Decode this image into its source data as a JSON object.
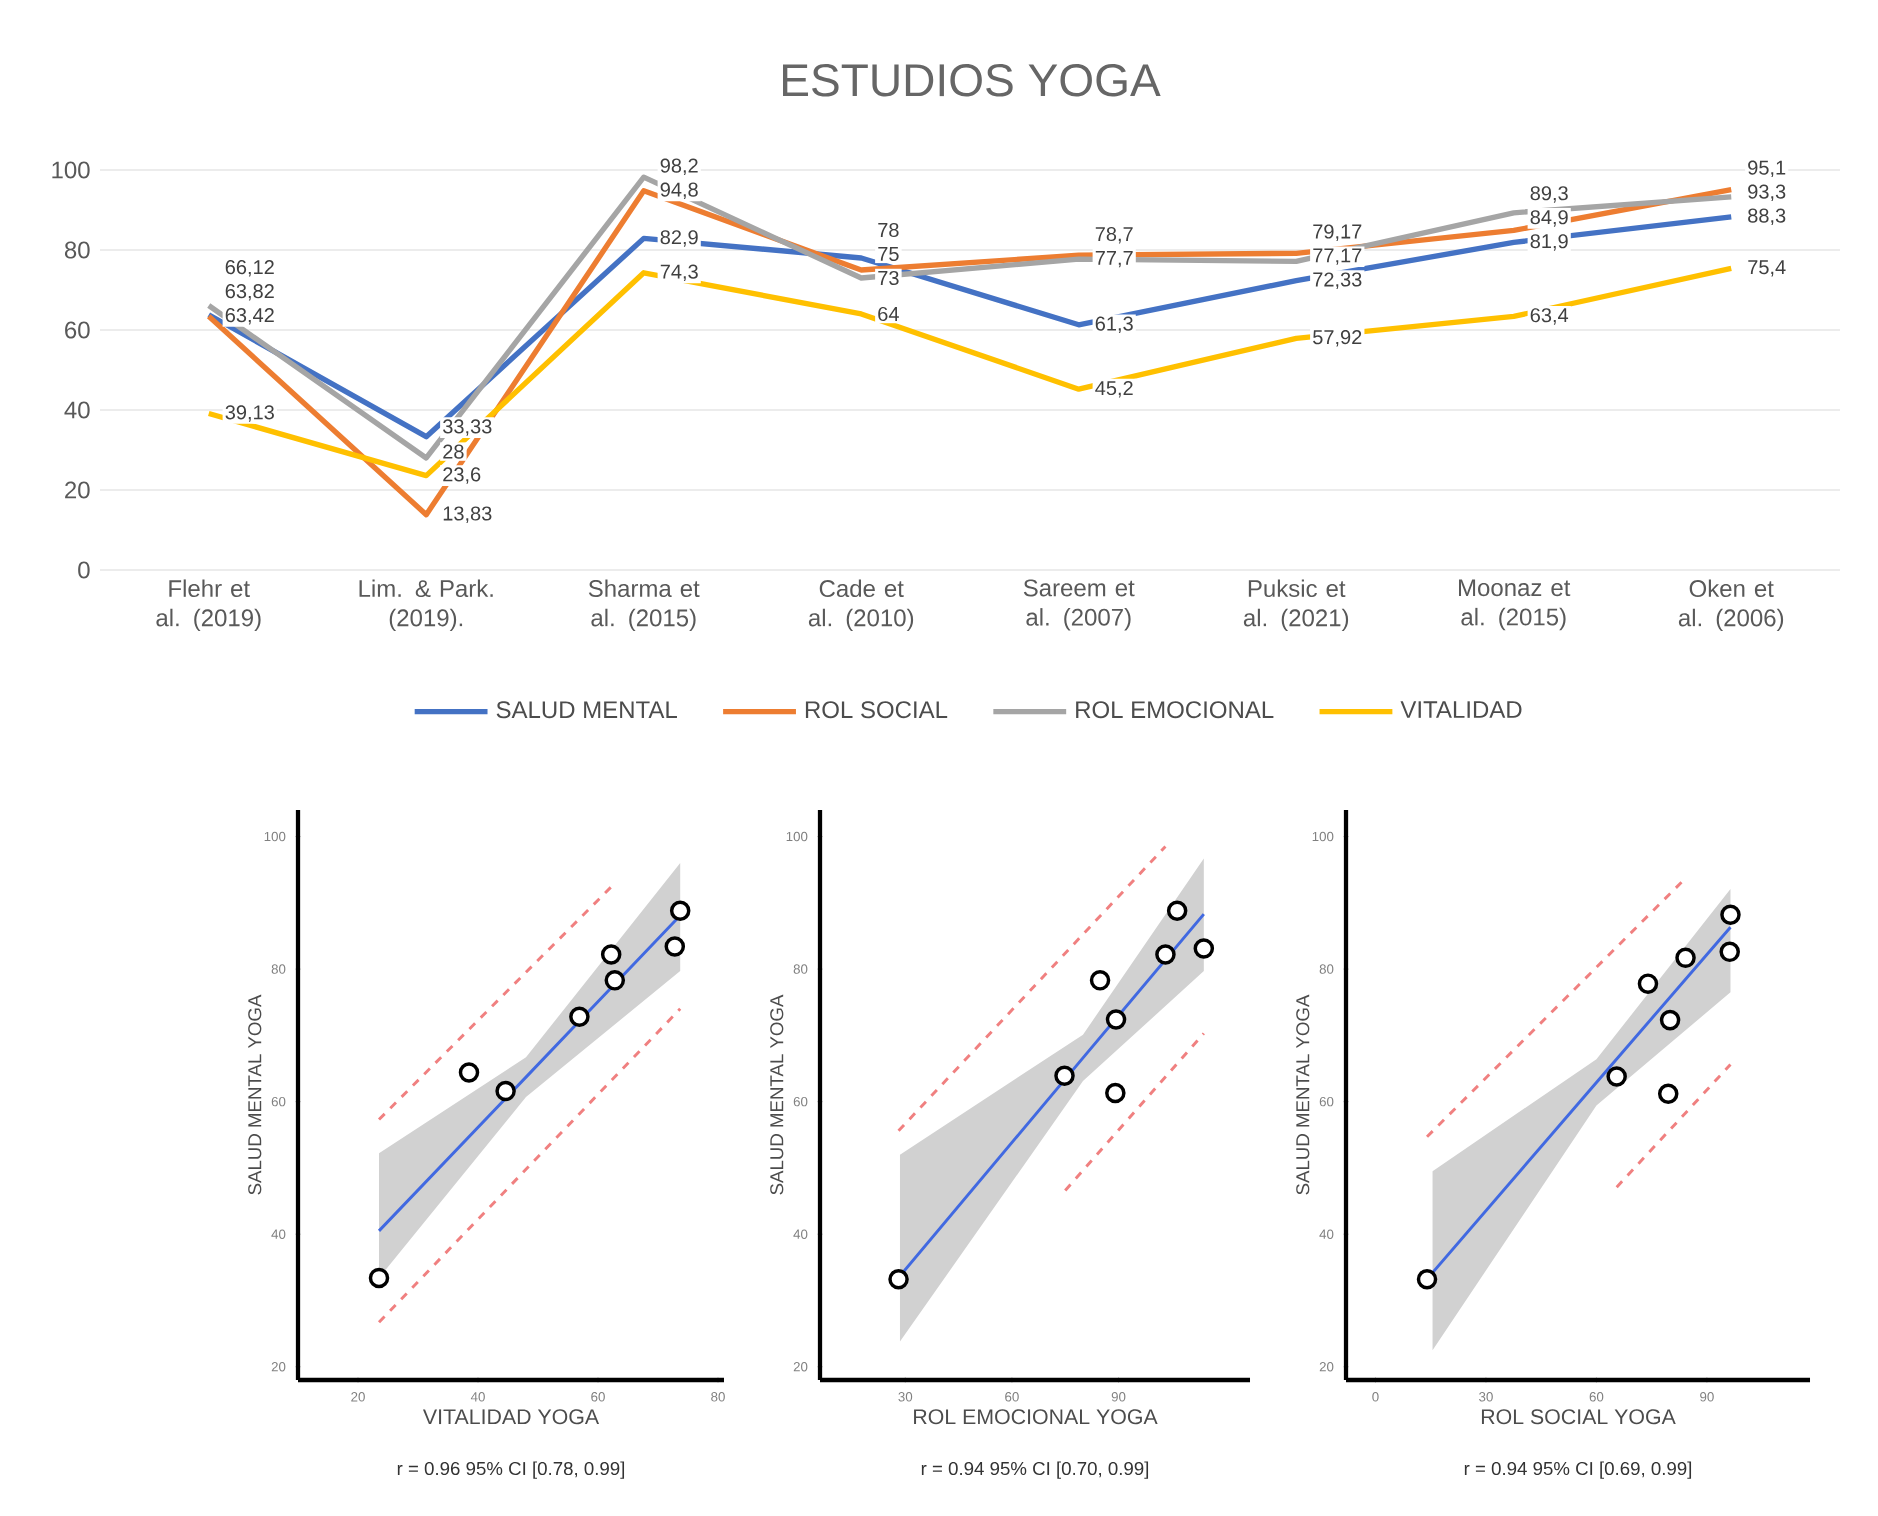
{
  "chart_data": [
    {
      "type": "line",
      "title": "ESTUDIOS YOGA",
      "categories": [
        "Flehr et al. (2019)",
        "Lim. & Park. (2019).",
        "Sharma et al. (2015)",
        "Cade et al. (2010)",
        "Sareem et al. (2007)",
        "Puksic et al. (2021)",
        "Moonaz et al. (2015)",
        "Oken et al. (2006)"
      ],
      "ylim": [
        0,
        100
      ],
      "yticks": [
        0,
        20,
        40,
        60,
        80,
        100
      ],
      "grid": "y",
      "legend": "bottom",
      "series": [
        {
          "name": "SALUD MENTAL",
          "color": "#4472c4",
          "values": [
            63.82,
            33.33,
            82.9,
            78,
            61.3,
            72.33,
            81.9,
            88.3
          ],
          "value_labels": [
            "63,82",
            "33,33",
            "82,9",
            "78",
            "61,3",
            "72,33",
            "81,9",
            "88,3"
          ]
        },
        {
          "name": "ROL SOCIAL",
          "color": "#ed7d31",
          "values": [
            63.42,
            13.83,
            94.8,
            75,
            78.7,
            79.17,
            84.9,
            95.1
          ],
          "value_labels": [
            "63,42",
            "13,83",
            "94,8",
            "75",
            "78,7",
            "79,17",
            "84,9",
            "95,1"
          ]
        },
        {
          "name": "ROL EMOCIONAL",
          "color": "#a5a5a5",
          "values": [
            66.12,
            28,
            98.2,
            73,
            77.7,
            77.17,
            89.3,
            93.3
          ],
          "value_labels": [
            "66,12",
            "28",
            "98,2",
            "73",
            "77,7",
            "77,17",
            "89,3",
            "93,3"
          ]
        },
        {
          "name": "VITALIDAD",
          "color": "#ffc000",
          "values": [
            39.13,
            23.6,
            74.3,
            64,
            45.2,
            57.92,
            63.4,
            75.4
          ],
          "value_labels": [
            "39,13",
            "23,6",
            "74,3",
            "64",
            "45,2",
            "57,92",
            "63,4",
            "75,4"
          ]
        }
      ]
    },
    {
      "type": "scatter",
      "xlabel": "VITALIDAD YOGA",
      "ylabel": "SALUD MENTAL YOGA",
      "annotations": [
        "r = 0.96 95% CI [0.78, 0.99]"
      ],
      "xlim": [
        10,
        81
      ],
      "xticks": [
        20,
        40,
        60,
        80
      ],
      "ylim": [
        18,
        104
      ],
      "yticks": [
        20,
        40,
        60,
        80,
        100
      ],
      "series": [
        {
          "type": "line",
          "color": "#4169e1",
          "x": [
            23.5,
            48,
            73.7
          ],
          "values": [
            40.5,
            63.7,
            88.1
          ],
          "lower": [
            33.4,
            60.7,
            79.7
          ],
          "upper": [
            52.2,
            66.7,
            96
          ]
        },
        {
          "type": "line",
          "color": "#f08080",
          "line_style": "dashed",
          "x": [
            23.5,
            62.2
          ],
          "values": [
            57.3,
            92.4
          ]
        },
        {
          "type": "line",
          "color": "#f08080",
          "line_style": "dashed",
          "x": [
            23.5,
            73.7
          ],
          "values": [
            26.7,
            74
          ]
        },
        {
          "type": "scatter",
          "color": "#000000",
          "marker": "circle",
          "x": [
            23.5,
            38.5,
            44.6,
            56.9,
            62.2,
            62.8,
            72.8,
            73.7
          ],
          "values": [
            33.4,
            64.4,
            61.6,
            72.8,
            82.2,
            78.3,
            83.4,
            88.8
          ]
        }
      ]
    },
    {
      "type": "scatter",
      "xlabel": "ROL EMOCIONAL YOGA",
      "ylabel": "SALUD MENTAL YOGA",
      "annotations": [
        "r = 0.94 95% CI [0.70, 0.99]"
      ],
      "xlim": [
        6,
        127
      ],
      "xticks": [
        30,
        60,
        90
      ],
      "ylim": [
        18,
        104
      ],
      "yticks": [
        20,
        40,
        60,
        80,
        100
      ],
      "series": [
        {
          "type": "line",
          "color": "#4169e1",
          "x": [
            28.5,
            80,
            114
          ],
          "values": [
            33.7,
            66.6,
            88.3
          ],
          "lower": [
            23.8,
            63.1,
            79.7
          ],
          "upper": [
            52,
            70.1,
            96.7
          ]
        },
        {
          "type": "line",
          "color": "#f08080",
          "line_style": "dashed",
          "x": [
            28.1,
            103.2
          ],
          "values": [
            55.6,
            98.5
          ]
        },
        {
          "type": "line",
          "color": "#f08080",
          "line_style": "dashed",
          "x": [
            75,
            114
          ],
          "values": [
            46.6,
            70.3
          ]
        },
        {
          "type": "scatter",
          "color": "#000000",
          "marker": "circle",
          "x": [
            28.1,
            74.8,
            84.8,
            89.3,
            89.1,
            103.2,
            106.5,
            114
          ],
          "values": [
            33.2,
            63.9,
            78.3,
            72.4,
            61.3,
            82.2,
            88.8,
            83.1
          ]
        }
      ]
    },
    {
      "type": "scatter",
      "xlabel": "ROL SOCIAL YOGA",
      "ylabel": "SALUD MENTAL YOGA",
      "annotations": [
        "r = 0.94 95% CI [0.69, 0.99]"
      ],
      "xlim": [
        -8,
        118
      ],
      "xticks": [
        0,
        30,
        60,
        90
      ],
      "ylim": [
        18,
        104
      ],
      "yticks": [
        20,
        40,
        60,
        80,
        100
      ],
      "series": [
        {
          "type": "line",
          "color": "#4169e1",
          "x": [
            15.5,
            60,
            96.4
          ],
          "values": [
            34.2,
            62.9,
            86.3
          ],
          "lower": [
            22.5,
            59.4,
            76.5
          ],
          "upper": [
            49.5,
            66.4,
            92.1
          ]
        },
        {
          "type": "line",
          "color": "#f08080",
          "line_style": "dashed",
          "x": [
            14,
            83.1
          ],
          "values": [
            54.7,
            93.1
          ]
        },
        {
          "type": "line",
          "color": "#f08080",
          "line_style": "dashed",
          "x": [
            65.5,
            96.4
          ],
          "values": [
            47.1,
            65.6
          ]
        },
        {
          "type": "scatter",
          "color": "#000000",
          "marker": "circle",
          "x": [
            14,
            65.5,
            74,
            80,
            79.5,
            84.2,
            96.2,
            96.4
          ],
          "values": [
            33.2,
            63.8,
            77.8,
            72.3,
            61.2,
            81.7,
            82.6,
            88.2
          ]
        }
      ]
    }
  ]
}
